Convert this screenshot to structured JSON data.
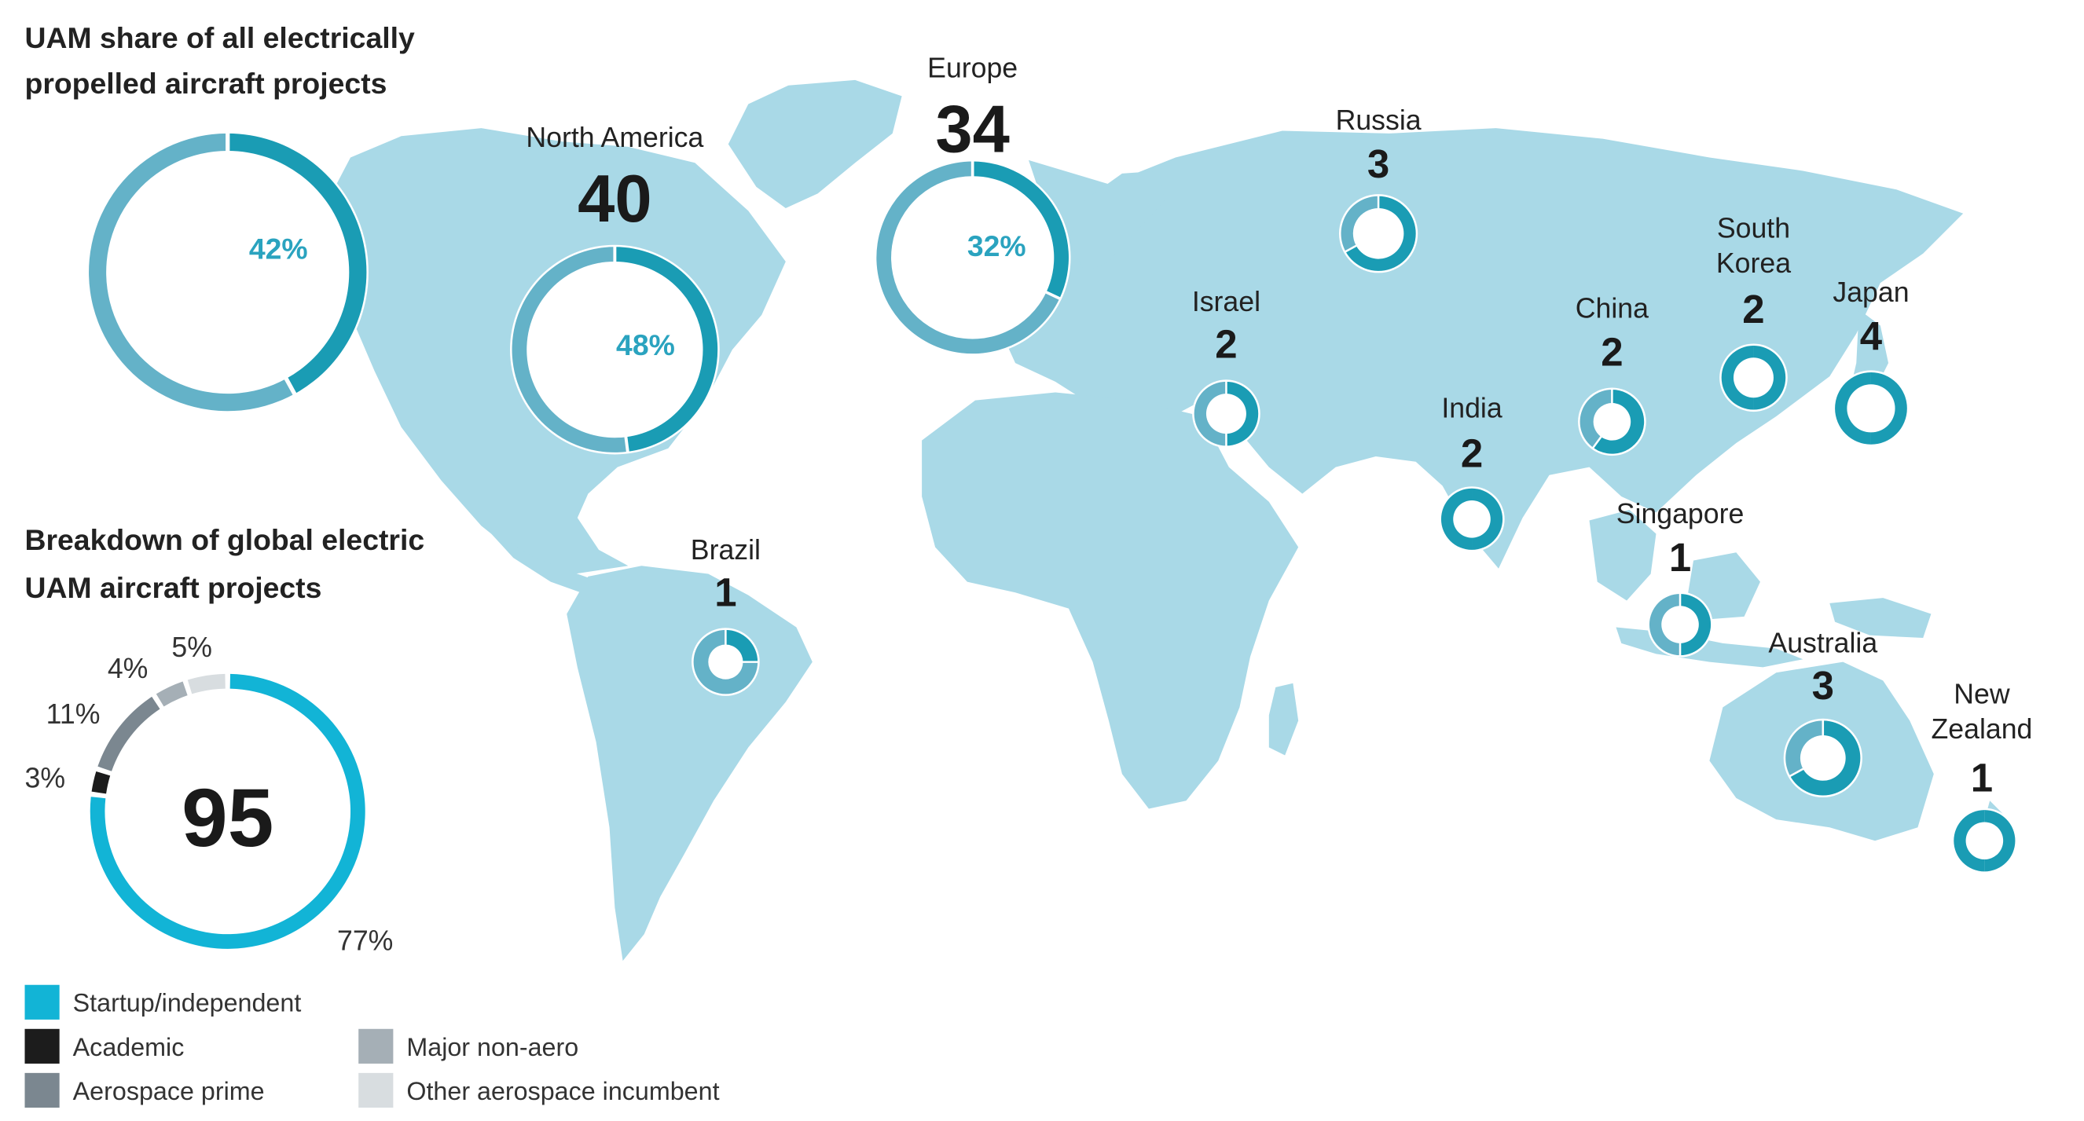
{
  "colors": {
    "map_land": "#a9d9e7",
    "ring_light": "#64b2c8",
    "ring_dark": "#1a9cb4",
    "pct_text": "#2aa3bf",
    "startup": "#12b4d6",
    "academic": "#1c1c1c",
    "aerospace_prime": "#7b8790",
    "major_non_aero": "#a5afb6",
    "other_incumbent": "#d8dde0",
    "text": "#222222"
  },
  "titles": {
    "share_line1": "UAM share of all electrically",
    "share_line2": "propelled aircraft projects",
    "breakdown_line1": "Breakdown of global electric",
    "breakdown_line2": "UAM aircraft projects"
  },
  "chart_data": [
    {
      "type": "pie",
      "chart": "uam-share-global",
      "values": [
        42,
        58
      ],
      "labels": [
        "42%",
        ""
      ]
    },
    {
      "type": "pie",
      "chart": "uam-project-breakdown",
      "total": "95",
      "categories": [
        "Startup/independent",
        "Academic",
        "Aerospace prime",
        "Major non-aero",
        "Other aerospace incumbent"
      ],
      "values": [
        77,
        3,
        11,
        4,
        5
      ],
      "labels": [
        "77%",
        "3%",
        "11%",
        "4%",
        "5%"
      ]
    },
    {
      "type": "pie",
      "chart": "regional-projects",
      "regions": [
        {
          "key": "north-america",
          "name": "North America",
          "count": "40",
          "share": 48,
          "label": "48%"
        },
        {
          "key": "europe",
          "name": "Europe",
          "count": "34",
          "share": 32,
          "label": "32%"
        },
        {
          "key": "russia",
          "name": "Russia",
          "count": "3",
          "share": 67
        },
        {
          "key": "israel",
          "name": "Israel",
          "count": "2",
          "share": 50
        },
        {
          "key": "china",
          "name": "China",
          "count": "2",
          "share": 60
        },
        {
          "key": "south-korea",
          "name": "South\nKorea",
          "count": "2",
          "share": 100
        },
        {
          "key": "japan",
          "name": "Japan",
          "count": "4",
          "share": 100
        },
        {
          "key": "india",
          "name": "India",
          "count": "2",
          "share": 100
        },
        {
          "key": "singapore",
          "name": "Singapore",
          "count": "1",
          "share": 50
        },
        {
          "key": "australia",
          "name": "Australia",
          "count": "3",
          "share": 67
        },
        {
          "key": "brazil",
          "name": "Brazil",
          "count": "1",
          "share": 25
        },
        {
          "key": "new-zealand",
          "name": "New\nZealand",
          "count": "1",
          "share": 100
        }
      ]
    }
  ],
  "legend": [
    {
      "key": "startup",
      "label": "Startup/independent"
    },
    {
      "key": "academic",
      "label": "Academic"
    },
    {
      "key": "aerospace_prime",
      "label": "Aerospace prime"
    },
    {
      "key": "major_non_aero",
      "label": "Major non-aero"
    },
    {
      "key": "other_incumbent",
      "label": "Other aerospace incumbent"
    }
  ]
}
